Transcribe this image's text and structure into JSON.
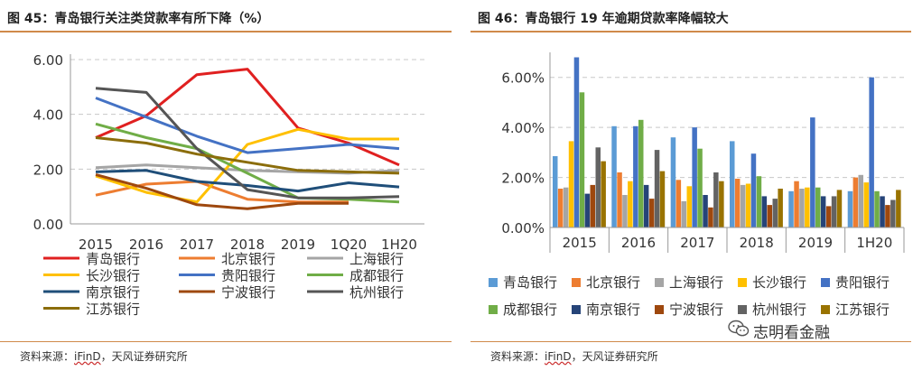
{
  "left": {
    "title": "图 45：青岛银行关注类贷款率有所下降（%）",
    "source_prefix": "资料来源：",
    "source_ifind": "iFinD",
    "source_suffix": "，天风证券研究所",
    "chart_data": {
      "type": "line",
      "title": "图 45：青岛银行关注类贷款率有所下降（%）",
      "categories": [
        "2015",
        "2016",
        "2017",
        "2018",
        "2019",
        "1Q20",
        "1H20"
      ],
      "ylim": [
        0,
        6
      ],
      "yticks": [
        "0.00",
        "2.00",
        "4.00",
        "6.00"
      ],
      "grid": true,
      "legend": "bottom",
      "series": [
        {
          "name": "青岛银行",
          "color": "#e02020",
          "values": [
            3.15,
            3.95,
            5.45,
            5.65,
            3.5,
            2.95,
            2.15
          ]
        },
        {
          "name": "北京银行",
          "color": "#ed7d31",
          "values": [
            1.05,
            1.45,
            1.55,
            0.9,
            0.8,
            0.8,
            null
          ]
        },
        {
          "name": "上海银行",
          "color": "#a5a5a5",
          "values": [
            2.05,
            2.15,
            2.05,
            1.95,
            1.9,
            1.85,
            1.95
          ]
        },
        {
          "name": "长沙银行",
          "color": "#ffc000",
          "values": [
            1.75,
            1.15,
            0.8,
            2.9,
            3.45,
            3.1,
            3.1
          ]
        },
        {
          "name": "贵阳银行",
          "color": "#4472c4",
          "values": [
            4.6,
            3.9,
            3.2,
            2.6,
            2.75,
            2.9,
            2.75
          ]
        },
        {
          "name": "成都银行",
          "color": "#70ad47",
          "values": [
            3.65,
            3.15,
            2.75,
            1.85,
            0.95,
            0.9,
            0.8
          ]
        },
        {
          "name": "南京银行",
          "color": "#1f4e79",
          "values": [
            1.9,
            1.95,
            1.55,
            1.4,
            1.2,
            1.5,
            1.35
          ]
        },
        {
          "name": "宁波银行",
          "color": "#9e480e",
          "values": [
            1.8,
            1.3,
            0.7,
            0.55,
            0.75,
            0.75,
            null
          ]
        },
        {
          "name": "杭州银行",
          "color": "#555555",
          "values": [
            4.95,
            4.8,
            2.75,
            1.25,
            0.95,
            0.95,
            1.0
          ]
        },
        {
          "name": "江苏银行",
          "color": "#8b6d0b",
          "values": [
            3.15,
            2.95,
            2.55,
            2.25,
            1.95,
            1.9,
            1.85
          ]
        }
      ]
    }
  },
  "right": {
    "title": "图 46：青岛银行 19 年逾期贷款率降幅较大",
    "source_prefix": "资料来源：",
    "source_ifind": "iFinD",
    "source_suffix": "，天风证券研究所",
    "watermark": "志明看金融",
    "chart_data": {
      "type": "bar",
      "title": "图 46：青岛银行 19 年逾期贷款率降幅较大",
      "categories": [
        "2015",
        "2016",
        "2017",
        "2018",
        "2019",
        "1H20"
      ],
      "ylim": [
        0,
        7
      ],
      "yticks": [
        "0.00%",
        "2.00%",
        "4.00%",
        "6.00%"
      ],
      "grid": true,
      "legend": "bottom",
      "series": [
        {
          "name": "青岛银行",
          "color": "#5b9bd5",
          "values": [
            2.85,
            4.05,
            3.6,
            3.45,
            1.45,
            1.45
          ]
        },
        {
          "name": "北京银行",
          "color": "#ed7d31",
          "values": [
            1.55,
            2.2,
            1.9,
            1.95,
            1.85,
            2.0
          ]
        },
        {
          "name": "上海银行",
          "color": "#a5a5a5",
          "values": [
            1.6,
            1.3,
            1.05,
            1.7,
            1.55,
            2.1
          ]
        },
        {
          "name": "长沙银行",
          "color": "#ffc000",
          "values": [
            3.45,
            1.85,
            1.65,
            1.75,
            1.6,
            1.8
          ]
        },
        {
          "name": "贵阳银行",
          "color": "#4472c4",
          "values": [
            6.8,
            4.05,
            4.0,
            2.95,
            4.4,
            6.0
          ]
        },
        {
          "name": "成都银行",
          "color": "#70ad47",
          "values": [
            5.4,
            4.3,
            3.15,
            2.05,
            1.6,
            1.45
          ]
        },
        {
          "name": "南京银行",
          "color": "#264478",
          "values": [
            1.35,
            1.7,
            1.3,
            1.25,
            1.25,
            1.25
          ]
        },
        {
          "name": "宁波银行",
          "color": "#9e480e",
          "values": [
            1.7,
            1.15,
            0.8,
            0.9,
            0.85,
            0.9
          ]
        },
        {
          "name": "杭州银行",
          "color": "#636363",
          "values": [
            3.2,
            3.1,
            2.2,
            1.15,
            1.25,
            1.1
          ]
        },
        {
          "name": "江苏银行",
          "color": "#997300",
          "values": [
            2.65,
            2.25,
            1.85,
            1.55,
            1.5,
            1.5
          ]
        }
      ]
    }
  }
}
